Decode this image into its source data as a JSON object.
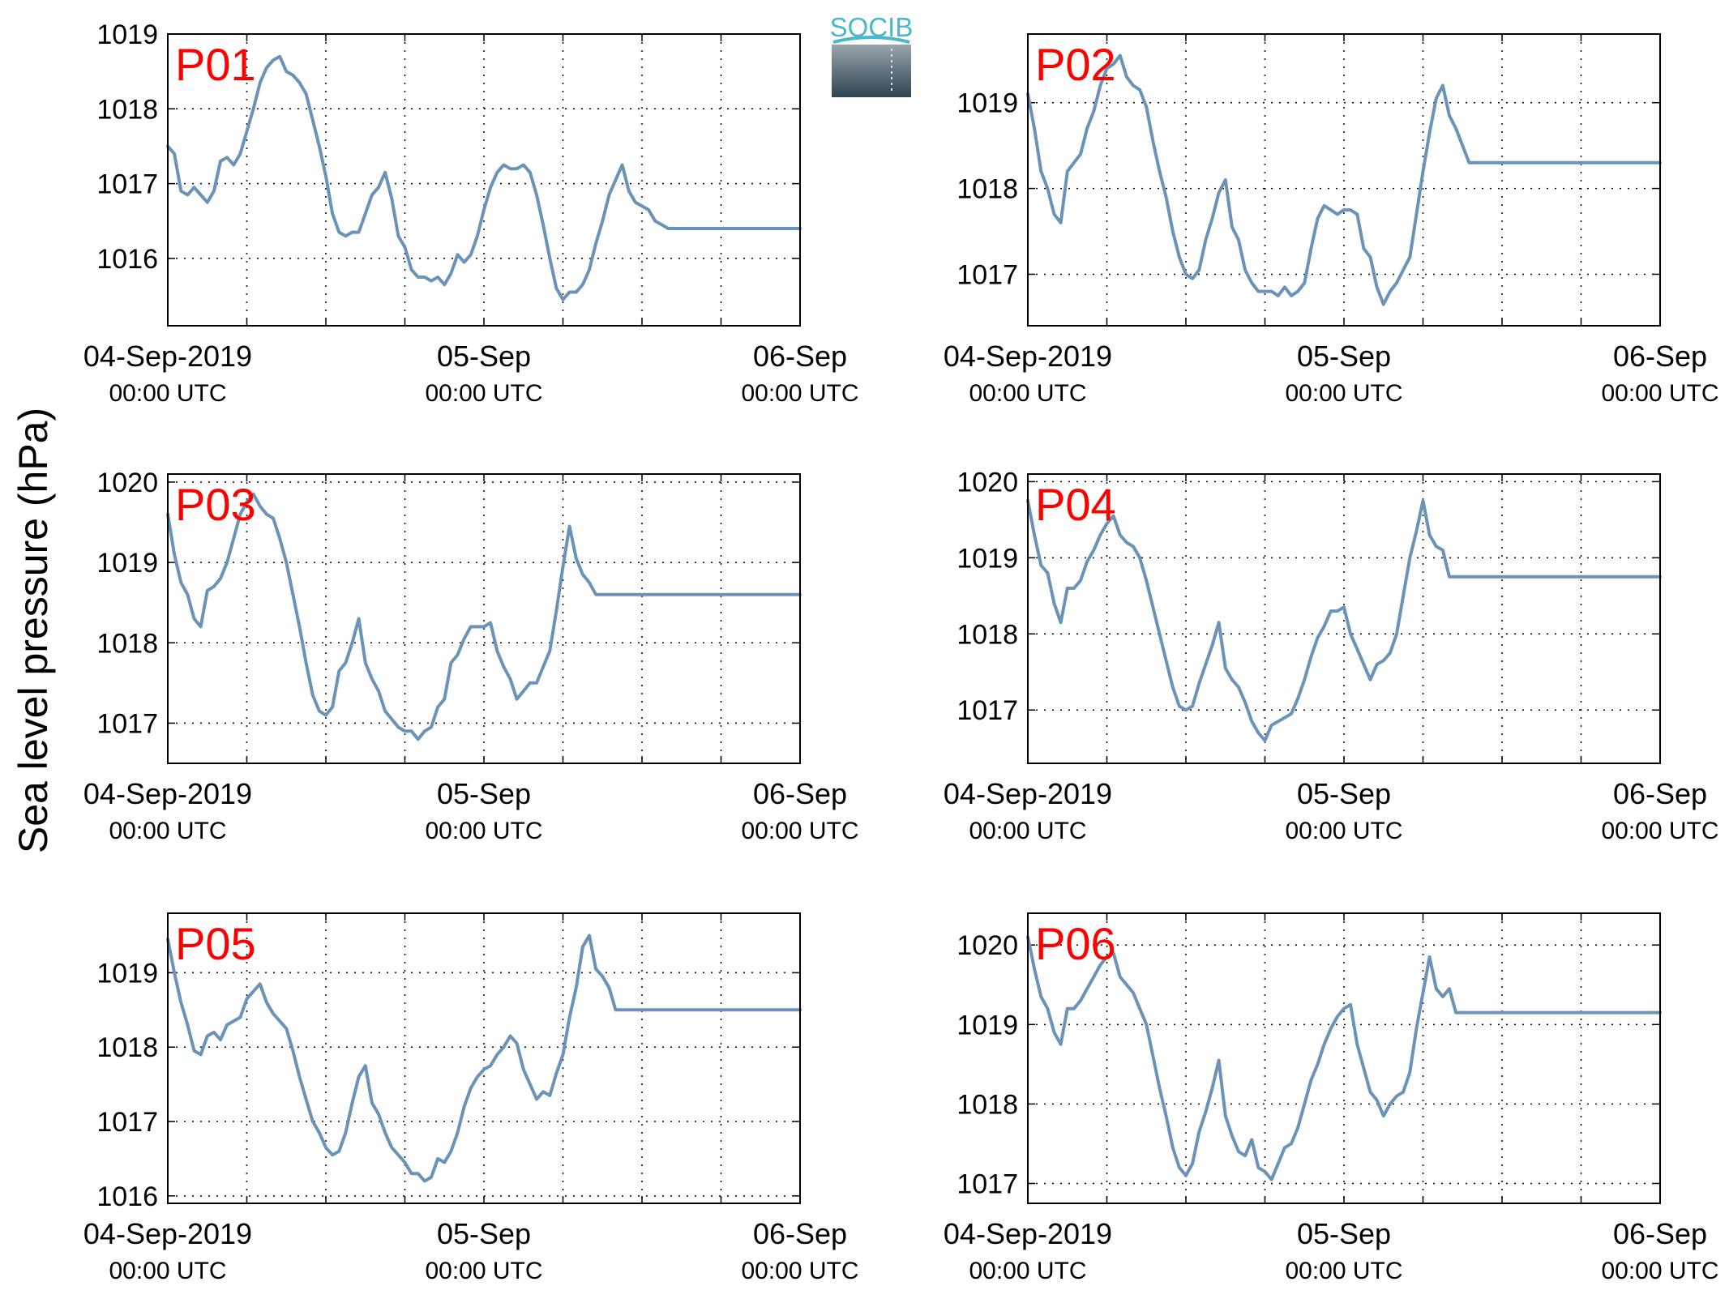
{
  "ylabel": "Sea level pressure (hPa)",
  "logo": {
    "text": "SOCIB",
    "colors": {
      "text": "#4bb7cc",
      "top": "#9aa4ac",
      "bottom": "#2f4450"
    }
  },
  "line_color": "#6b93b7",
  "label_color": "#ff0000",
  "x_ticks": [
    {
      "hour": 0,
      "line1": "04-Sep-2019",
      "line2": "00:00 UTC"
    },
    {
      "hour": 24,
      "line1": "05-Sep",
      "line2": "00:00 UTC"
    },
    {
      "hour": 48,
      "line1": "06-Sep",
      "line2": "00:00 UTC"
    }
  ],
  "chart_data": [
    {
      "type": "line",
      "label": "P01",
      "xunit": "hours since 04-Sep-2019 00:00 UTC",
      "xlim": [
        0,
        48
      ],
      "ylim": [
        1015.1,
        1019.0
      ],
      "yticks": [
        1016,
        1017,
        1018,
        1019
      ],
      "grid": true,
      "x": [
        0,
        0.5,
        1,
        1.5,
        2,
        2.5,
        3,
        3.5,
        4,
        4.5,
        5,
        5.5,
        6,
        6.5,
        7,
        7.5,
        8,
        8.5,
        9,
        9.5,
        10,
        10.5,
        11,
        11.5,
        12,
        12.5,
        13,
        13.5,
        14,
        14.5,
        15,
        15.5,
        16,
        16.5,
        17,
        17.5,
        18,
        18.5,
        19,
        19.5,
        20,
        20.5,
        21,
        21.5,
        22,
        22.5,
        23,
        23.5,
        24,
        24.5,
        25,
        25.5,
        26,
        26.5,
        27,
        27.5,
        28,
        28.5,
        29,
        29.5,
        30,
        30.5,
        31,
        31.5,
        32,
        32.5,
        33,
        33.5,
        34,
        34.5,
        35,
        35.5,
        36,
        36.5,
        37,
        37.5,
        38,
        38.5,
        39,
        39.5,
        40,
        40.5,
        41,
        41.5,
        42,
        42.5,
        43,
        43.5,
        44,
        44.5,
        45,
        45.5,
        46,
        46.5,
        47,
        47.5,
        48
      ],
      "y": [
        1017.5,
        1017.4,
        1016.9,
        1016.85,
        1016.95,
        1016.85,
        1016.75,
        1016.9,
        1017.3,
        1017.35,
        1017.25,
        1017.4,
        1017.7,
        1018.0,
        1018.35,
        1018.55,
        1018.65,
        1018.7,
        1018.5,
        1018.45,
        1018.35,
        1018.2,
        1017.85,
        1017.5,
        1017.1,
        1016.6,
        1016.35,
        1016.3,
        1016.35,
        1016.35,
        1016.6,
        1016.85,
        1016.95,
        1017.15,
        1016.8,
        1016.3,
        1016.15,
        1015.85,
        1015.75,
        1015.75,
        1015.7,
        1015.75,
        1015.65,
        1015.8,
        1016.05,
        1015.95,
        1016.05,
        1016.3,
        1016.65,
        1016.95,
        1017.15,
        1017.25,
        1017.2,
        1017.2,
        1017.25,
        1017.15,
        1016.85,
        1016.45,
        1016.0,
        1015.6,
        1015.45,
        1015.55,
        1015.55,
        1015.65,
        1015.85,
        1016.2,
        1016.5,
        1016.85,
        1017.05,
        1017.25,
        1016.9,
        1016.75,
        1016.7,
        1016.65,
        1016.5,
        1016.45,
        1016.4,
        1016.4,
        1016.4,
        1016.4,
        1016.4,
        1016.4,
        1016.4,
        1016.4,
        1016.4,
        1016.4,
        1016.4,
        1016.4,
        1016.4,
        1016.4,
        1016.4,
        1016.4,
        1016.4,
        1016.4,
        1016.4,
        1016.4,
        1016.4
      ]
    },
    {
      "type": "line",
      "label": "P02",
      "xunit": "hours since 04-Sep-2019 00:00 UTC",
      "xlim": [
        0,
        48
      ],
      "ylim": [
        1016.4,
        1019.8
      ],
      "yticks": [
        1017,
        1018,
        1019
      ],
      "grid": true,
      "x": [
        0,
        0.5,
        1,
        1.5,
        2,
        2.5,
        3,
        3.5,
        4,
        4.5,
        5,
        5.5,
        6,
        6.5,
        7,
        7.5,
        8,
        8.5,
        9,
        9.5,
        10,
        10.5,
        11,
        11.5,
        12,
        12.5,
        13,
        13.5,
        14,
        14.5,
        15,
        15.5,
        16,
        16.5,
        17,
        17.5,
        18,
        18.5,
        19,
        19.5,
        20,
        20.5,
        21,
        21.5,
        22,
        22.5,
        23,
        23.5,
        24,
        24.5,
        25,
        25.5,
        26,
        26.5,
        27,
        27.5,
        28,
        28.5,
        29,
        29.5,
        30,
        30.5,
        31,
        31.5,
        32,
        32.5,
        33,
        33.5,
        34,
        34.5,
        35,
        35.5,
        36,
        36.5,
        37,
        37.5,
        38,
        38.5,
        39,
        39.5,
        40,
        40.5,
        41,
        41.5,
        42,
        42.5,
        43,
        43.5,
        44,
        44.5,
        45,
        45.5,
        46,
        46.5,
        47,
        47.5,
        48
      ],
      "y": [
        1019.1,
        1018.7,
        1018.2,
        1018.0,
        1017.7,
        1017.6,
        1018.2,
        1018.3,
        1018.4,
        1018.7,
        1018.9,
        1019.2,
        1019.4,
        1019.45,
        1019.55,
        1019.3,
        1019.2,
        1019.15,
        1018.95,
        1018.55,
        1018.2,
        1017.9,
        1017.5,
        1017.2,
        1017.0,
        1016.95,
        1017.05,
        1017.4,
        1017.65,
        1017.95,
        1018.1,
        1017.55,
        1017.4,
        1017.05,
        1016.9,
        1016.8,
        1016.8,
        1016.8,
        1016.75,
        1016.85,
        1016.75,
        1016.8,
        1016.9,
        1017.3,
        1017.65,
        1017.8,
        1017.75,
        1017.7,
        1017.75,
        1017.75,
        1017.7,
        1017.3,
        1017.2,
        1016.85,
        1016.65,
        1016.8,
        1016.9,
        1017.05,
        1017.2,
        1017.7,
        1018.2,
        1018.65,
        1019.05,
        1019.2,
        1018.85,
        1018.7,
        1018.5,
        1018.3,
        1018.3,
        1018.3,
        1018.3,
        1018.3,
        1018.3,
        1018.3,
        1018.3,
        1018.3,
        1018.3,
        1018.3,
        1018.3,
        1018.3,
        1018.3,
        1018.3,
        1018.3,
        1018.3,
        1018.3,
        1018.3,
        1018.3,
        1018.3,
        1018.3,
        1018.3,
        1018.3,
        1018.3,
        1018.3,
        1018.3,
        1018.3,
        1018.3,
        1018.3
      ]
    },
    {
      "type": "line",
      "label": "P03",
      "xunit": "hours since 04-Sep-2019 00:00 UTC",
      "xlim": [
        0,
        48
      ],
      "ylim": [
        1016.5,
        1020.1
      ],
      "yticks": [
        1017,
        1018,
        1019,
        1020
      ],
      "grid": true,
      "x": [
        0,
        0.5,
        1,
        1.5,
        2,
        2.5,
        3,
        3.5,
        4,
        4.5,
        5,
        5.5,
        6,
        6.5,
        7,
        7.5,
        8,
        8.5,
        9,
        9.5,
        10,
        10.5,
        11,
        11.5,
        12,
        12.5,
        13,
        13.5,
        14,
        14.5,
        15,
        15.5,
        16,
        16.5,
        17,
        17.5,
        18,
        18.5,
        19,
        19.5,
        20,
        20.5,
        21,
        21.5,
        22,
        22.5,
        23,
        23.5,
        24,
        24.5,
        25,
        25.5,
        26,
        26.5,
        27,
        27.5,
        28,
        28.5,
        29,
        29.5,
        30,
        30.5,
        31,
        31.5,
        32,
        32.5,
        33,
        33.5,
        34,
        34.5,
        35,
        35.5,
        36,
        36.5,
        37,
        37.5,
        38,
        38.5,
        39,
        39.5,
        40,
        40.5,
        41,
        41.5,
        42,
        42.5,
        43,
        43.5,
        44,
        44.5,
        45,
        45.5,
        46,
        46.5,
        47,
        47.5,
        48
      ],
      "y": [
        1019.6,
        1019.1,
        1018.75,
        1018.6,
        1018.3,
        1018.2,
        1018.65,
        1018.7,
        1018.8,
        1019.0,
        1019.3,
        1019.6,
        1019.75,
        1019.85,
        1019.7,
        1019.6,
        1019.55,
        1019.3,
        1019.0,
        1018.6,
        1018.2,
        1017.75,
        1017.35,
        1017.15,
        1017.1,
        1017.2,
        1017.65,
        1017.75,
        1018.0,
        1018.3,
        1017.75,
        1017.55,
        1017.4,
        1017.15,
        1017.05,
        1016.95,
        1016.9,
        1016.9,
        1016.8,
        1016.9,
        1016.95,
        1017.2,
        1017.3,
        1017.75,
        1017.85,
        1018.05,
        1018.2,
        1018.2,
        1018.2,
        1018.25,
        1017.9,
        1017.7,
        1017.55,
        1017.3,
        1017.4,
        1017.5,
        1017.5,
        1017.7,
        1017.9,
        1018.4,
        1018.95,
        1019.45,
        1019.05,
        1018.85,
        1018.75,
        1018.6,
        1018.6,
        1018.6,
        1018.6,
        1018.6,
        1018.6,
        1018.6,
        1018.6,
        1018.6,
        1018.6,
        1018.6,
        1018.6,
        1018.6,
        1018.6,
        1018.6,
        1018.6,
        1018.6,
        1018.6,
        1018.6,
        1018.6,
        1018.6,
        1018.6,
        1018.6,
        1018.6,
        1018.6,
        1018.6,
        1018.6,
        1018.6,
        1018.6,
        1018.6,
        1018.6,
        1018.6
      ]
    },
    {
      "type": "line",
      "label": "P04",
      "xunit": "hours since 04-Sep-2019 00:00 UTC",
      "xlim": [
        0,
        48
      ],
      "ylim": [
        1016.3,
        1020.1
      ],
      "yticks": [
        1017,
        1018,
        1019,
        1020
      ],
      "grid": true,
      "x": [
        0,
        0.5,
        1,
        1.5,
        2,
        2.5,
        3,
        3.5,
        4,
        4.5,
        5,
        5.5,
        6,
        6.5,
        7,
        7.5,
        8,
        8.5,
        9,
        9.5,
        10,
        10.5,
        11,
        11.5,
        12,
        12.5,
        13,
        13.5,
        14,
        14.5,
        15,
        15.5,
        16,
        16.5,
        17,
        17.5,
        18,
        18.5,
        19,
        19.5,
        20,
        20.5,
        21,
        21.5,
        22,
        22.5,
        23,
        23.5,
        24,
        24.5,
        25,
        25.5,
        26,
        26.5,
        27,
        27.5,
        28,
        28.5,
        29,
        29.5,
        30,
        30.5,
        31,
        31.5,
        32,
        32.5,
        33,
        33.5,
        34,
        34.5,
        35,
        35.5,
        36,
        36.5,
        37,
        37.5,
        38,
        38.5,
        39,
        39.5,
        40,
        40.5,
        41,
        41.5,
        42,
        42.5,
        43,
        43.5,
        44,
        44.5,
        45,
        45.5,
        46,
        46.5,
        47,
        47.5,
        48
      ],
      "y": [
        1019.75,
        1019.3,
        1018.9,
        1018.8,
        1018.4,
        1018.15,
        1018.6,
        1018.6,
        1018.7,
        1018.95,
        1019.1,
        1019.3,
        1019.45,
        1019.55,
        1019.3,
        1019.2,
        1019.15,
        1019.0,
        1018.7,
        1018.35,
        1018.0,
        1017.65,
        1017.3,
        1017.05,
        1017.0,
        1017.05,
        1017.35,
        1017.6,
        1017.85,
        1018.15,
        1017.55,
        1017.4,
        1017.3,
        1017.1,
        1016.85,
        1016.7,
        1016.6,
        1016.8,
        1016.85,
        1016.9,
        1016.95,
        1017.15,
        1017.4,
        1017.7,
        1017.95,
        1018.1,
        1018.3,
        1018.3,
        1018.35,
        1018.0,
        1017.8,
        1017.6,
        1017.4,
        1017.6,
        1017.65,
        1017.75,
        1018.0,
        1018.5,
        1019.0,
        1019.35,
        1019.75,
        1019.3,
        1019.15,
        1019.1,
        1018.75,
        1018.75,
        1018.75,
        1018.75,
        1018.75,
        1018.75,
        1018.75,
        1018.75,
        1018.75,
        1018.75,
        1018.75,
        1018.75,
        1018.75,
        1018.75,
        1018.75,
        1018.75,
        1018.75,
        1018.75,
        1018.75,
        1018.75,
        1018.75,
        1018.75,
        1018.75,
        1018.75,
        1018.75,
        1018.75,
        1018.75,
        1018.75,
        1018.75,
        1018.75,
        1018.75,
        1018.75,
        1018.75
      ]
    },
    {
      "type": "line",
      "label": "P05",
      "xunit": "hours since 04-Sep-2019 00:00 UTC",
      "xlim": [
        0,
        48
      ],
      "ylim": [
        1015.9,
        1019.8
      ],
      "yticks": [
        1016,
        1017,
        1018,
        1019
      ],
      "grid": true,
      "x": [
        0,
        0.5,
        1,
        1.5,
        2,
        2.5,
        3,
        3.5,
        4,
        4.5,
        5,
        5.5,
        6,
        6.5,
        7,
        7.5,
        8,
        8.5,
        9,
        9.5,
        10,
        10.5,
        11,
        11.5,
        12,
        12.5,
        13,
        13.5,
        14,
        14.5,
        15,
        15.5,
        16,
        16.5,
        17,
        17.5,
        18,
        18.5,
        19,
        19.5,
        20,
        20.5,
        21,
        21.5,
        22,
        22.5,
        23,
        23.5,
        24,
        24.5,
        25,
        25.5,
        26,
        26.5,
        27,
        27.5,
        28,
        28.5,
        29,
        29.5,
        30,
        30.5,
        31,
        31.5,
        32,
        32.5,
        33,
        33.5,
        34,
        34.5,
        35,
        35.5,
        36,
        36.5,
        37,
        37.5,
        38,
        38.5,
        39,
        39.5,
        40,
        40.5,
        41,
        41.5,
        42,
        42.5,
        43,
        43.5,
        44,
        44.5,
        45,
        45.5,
        46,
        46.5,
        47,
        47.5,
        48
      ],
      "y": [
        1019.45,
        1019.0,
        1018.6,
        1018.3,
        1017.95,
        1017.9,
        1018.15,
        1018.2,
        1018.1,
        1018.3,
        1018.35,
        1018.4,
        1018.65,
        1018.75,
        1018.85,
        1018.6,
        1018.45,
        1018.35,
        1018.25,
        1017.95,
        1017.6,
        1017.3,
        1017.0,
        1016.85,
        1016.65,
        1016.55,
        1016.6,
        1016.85,
        1017.25,
        1017.6,
        1017.75,
        1017.25,
        1017.1,
        1016.85,
        1016.65,
        1016.55,
        1016.45,
        1016.3,
        1016.3,
        1016.2,
        1016.25,
        1016.5,
        1016.45,
        1016.6,
        1016.85,
        1017.2,
        1017.45,
        1017.6,
        1017.7,
        1017.75,
        1017.9,
        1018.0,
        1018.15,
        1018.05,
        1017.7,
        1017.5,
        1017.3,
        1017.4,
        1017.35,
        1017.65,
        1017.9,
        1018.4,
        1018.8,
        1019.35,
        1019.5,
        1019.05,
        1018.95,
        1018.8,
        1018.5,
        1018.5,
        1018.5,
        1018.5,
        1018.5,
        1018.5,
        1018.5,
        1018.5,
        1018.5,
        1018.5,
        1018.5,
        1018.5,
        1018.5,
        1018.5,
        1018.5,
        1018.5,
        1018.5,
        1018.5,
        1018.5,
        1018.5,
        1018.5,
        1018.5,
        1018.5,
        1018.5,
        1018.5,
        1018.5,
        1018.5,
        1018.5,
        1018.5
      ]
    },
    {
      "type": "line",
      "label": "P06",
      "xunit": "hours since 04-Sep-2019 00:00 UTC",
      "xlim": [
        0,
        48
      ],
      "ylim": [
        1016.75,
        1020.4
      ],
      "yticks": [
        1017,
        1018,
        1019,
        1020
      ],
      "grid": true,
      "x": [
        0,
        0.5,
        1,
        1.5,
        2,
        2.5,
        3,
        3.5,
        4,
        4.5,
        5,
        5.5,
        6,
        6.5,
        7,
        7.5,
        8,
        8.5,
        9,
        9.5,
        10,
        10.5,
        11,
        11.5,
        12,
        12.5,
        13,
        13.5,
        14,
        14.5,
        15,
        15.5,
        16,
        16.5,
        17,
        17.5,
        18,
        18.5,
        19,
        19.5,
        20,
        20.5,
        21,
        21.5,
        22,
        22.5,
        23,
        23.5,
        24,
        24.5,
        25,
        25.5,
        26,
        26.5,
        27,
        27.5,
        28,
        28.5,
        29,
        29.5,
        30,
        30.5,
        31,
        31.5,
        32,
        32.5,
        33,
        33.5,
        34,
        34.5,
        35,
        35.5,
        36,
        36.5,
        37,
        37.5,
        38,
        38.5,
        39,
        39.5,
        40,
        40.5,
        41,
        41.5,
        42,
        42.5,
        43,
        43.5,
        44,
        44.5,
        45,
        45.5,
        46,
        46.5,
        47,
        47.5,
        48
      ],
      "y": [
        1020.1,
        1019.7,
        1019.35,
        1019.2,
        1018.9,
        1018.75,
        1019.2,
        1019.2,
        1019.3,
        1019.45,
        1019.6,
        1019.75,
        1019.85,
        1019.9,
        1019.6,
        1019.5,
        1019.4,
        1019.2,
        1019.0,
        1018.6,
        1018.2,
        1017.85,
        1017.45,
        1017.2,
        1017.1,
        1017.25,
        1017.65,
        1017.9,
        1018.2,
        1018.55,
        1017.85,
        1017.6,
        1017.4,
        1017.35,
        1017.55,
        1017.2,
        1017.15,
        1017.05,
        1017.25,
        1017.45,
        1017.5,
        1017.7,
        1018.0,
        1018.3,
        1018.5,
        1018.75,
        1018.95,
        1019.1,
        1019.2,
        1019.25,
        1018.75,
        1018.45,
        1018.15,
        1018.05,
        1017.85,
        1018.0,
        1018.1,
        1018.15,
        1018.4,
        1018.95,
        1019.4,
        1019.85,
        1019.45,
        1019.35,
        1019.45,
        1019.15,
        1019.15,
        1019.15,
        1019.15,
        1019.15,
        1019.15,
        1019.15,
        1019.15,
        1019.15,
        1019.15,
        1019.15,
        1019.15,
        1019.15,
        1019.15,
        1019.15,
        1019.15,
        1019.15,
        1019.15,
        1019.15,
        1019.15,
        1019.15,
        1019.15,
        1019.15,
        1019.15,
        1019.15,
        1019.15,
        1019.15,
        1019.15,
        1019.15,
        1019.15,
        1019.15,
        1019.15
      ]
    }
  ]
}
